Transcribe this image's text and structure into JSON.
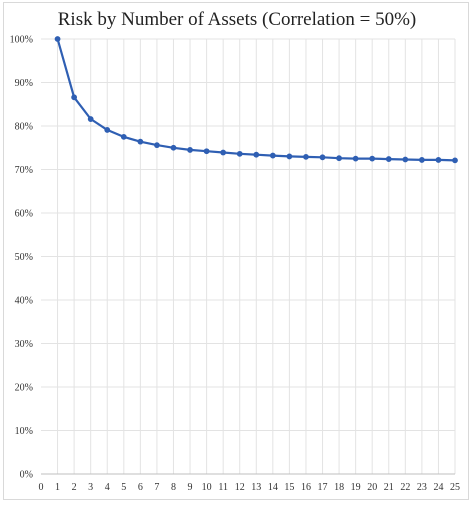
{
  "chart_data": {
    "type": "line",
    "title": "Risk by Number of Assets (Correlation = 50%)",
    "xlabel": "",
    "ylabel": "",
    "xlim": [
      0,
      25
    ],
    "ylim": [
      0,
      1
    ],
    "x_ticks": [
      "0",
      "1",
      "2",
      "3",
      "4",
      "5",
      "6",
      "7",
      "8",
      "9",
      "10",
      "11",
      "12",
      "13",
      "14",
      "15",
      "16",
      "17",
      "18",
      "19",
      "20",
      "21",
      "22",
      "23",
      "24",
      "25"
    ],
    "y_ticks": [
      "0%",
      "10%",
      "20%",
      "30%",
      "40%",
      "50%",
      "60%",
      "70%",
      "80%",
      "90%",
      "100%"
    ],
    "grid": true,
    "legend": "none",
    "series": [
      {
        "color": "#2f5fb3",
        "x": [
          1,
          2,
          3,
          4,
          5,
          6,
          7,
          8,
          9,
          10,
          11,
          12,
          13,
          14,
          15,
          16,
          17,
          18,
          19,
          20,
          21,
          22,
          23,
          24,
          25
        ],
        "values": [
          1.0,
          0.866,
          0.816,
          0.791,
          0.775,
          0.764,
          0.756,
          0.75,
          0.745,
          0.742,
          0.739,
          0.736,
          0.734,
          0.732,
          0.73,
          0.729,
          0.728,
          0.726,
          0.725,
          0.725,
          0.724,
          0.723,
          0.722,
          0.722,
          0.721
        ]
      }
    ]
  }
}
